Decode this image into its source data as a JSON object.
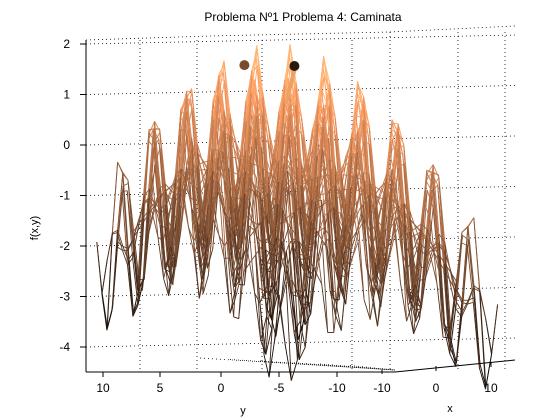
{
  "figure": {
    "title": "Problema Nº1 Problema 4: Caminata"
  },
  "chart_data": {
    "type": "surface",
    "title": "Problema Nº1 Problema 4: Caminata",
    "xlabel": "x",
    "ylabel": "y",
    "zlabel": "f(x,y)",
    "x_ticks": [
      "-10",
      "0",
      "10"
    ],
    "y_ticks": [
      "10",
      "5",
      "0",
      "-5",
      "-10"
    ],
    "z_ticks": [
      "2",
      "1",
      "0",
      "-1",
      "-2",
      "-3",
      "-4"
    ],
    "xlim": [
      -12,
      12
    ],
    "ylim": [
      -12,
      12
    ],
    "zlim": [
      -4.5,
      2
    ],
    "grid": true,
    "surface": {
      "style": "mesh",
      "colormap": "copper",
      "max_value": 2,
      "min_value": -4.4
    },
    "walk_points": [
      {
        "x": -3,
        "y": 2.5,
        "z": 1.45,
        "color": "#7a4a2c"
      },
      {
        "x": 1,
        "y": 0.5,
        "z": 1.55,
        "color": "#2a1a10"
      }
    ],
    "walk_path_color": "#f0a060"
  }
}
